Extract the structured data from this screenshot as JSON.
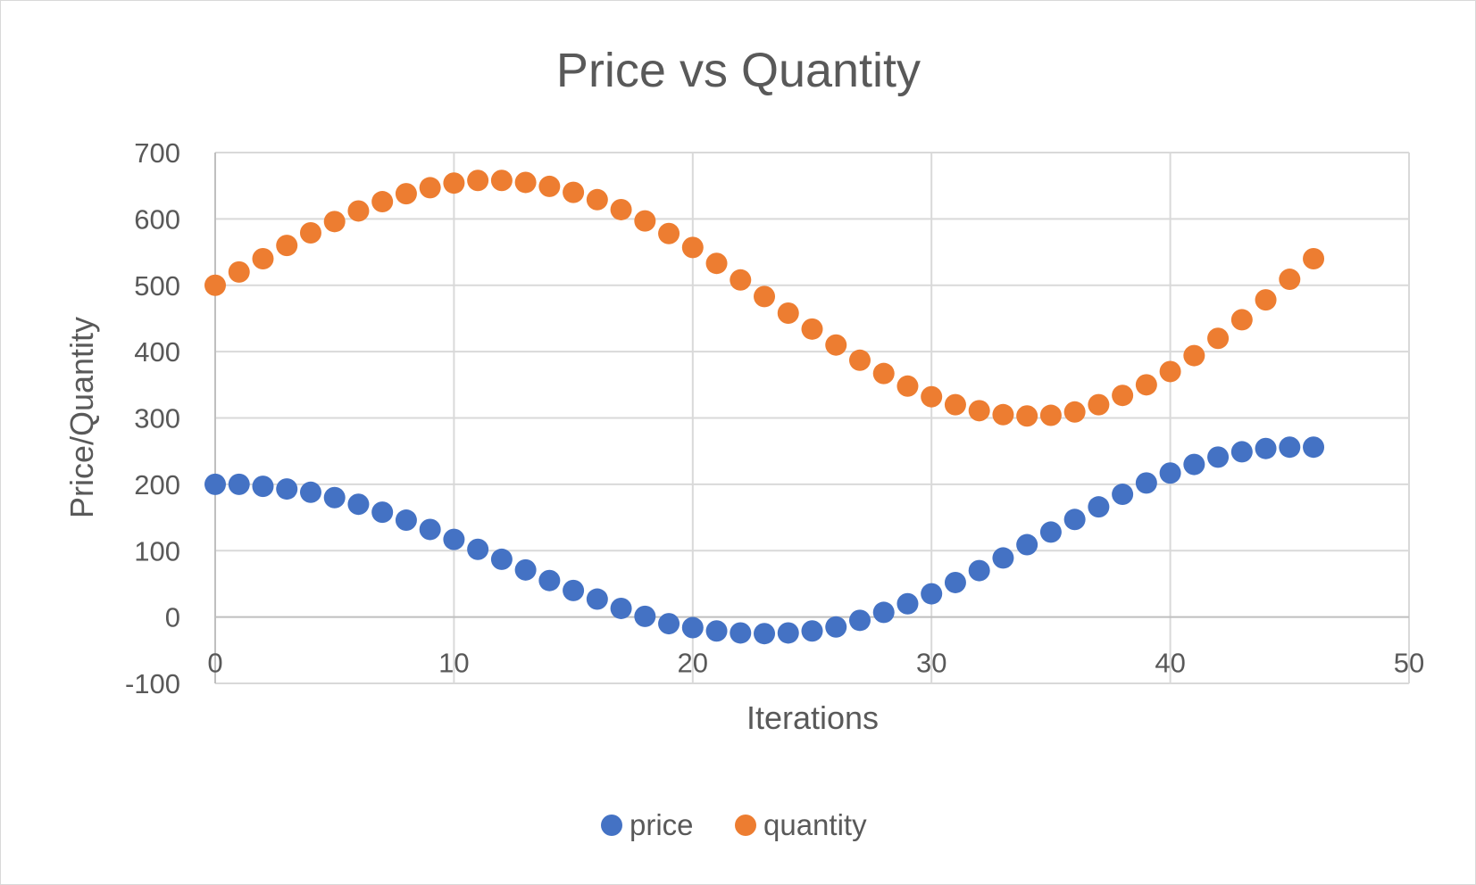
{
  "chart_data": {
    "type": "scatter",
    "title": "Price vs Quantity",
    "xlabel": "Iterations",
    "ylabel": "Price/Quantity",
    "xlim": [
      0,
      50
    ],
    "ylim": [
      -100,
      700
    ],
    "xticks": [
      0,
      10,
      20,
      30,
      40,
      50
    ],
    "yticks": [
      -100,
      0,
      100,
      200,
      300,
      400,
      500,
      600,
      700
    ],
    "grid": true,
    "legend_position": "bottom",
    "series": [
      {
        "name": "price",
        "color": "#4472C4",
        "x": [
          0,
          1,
          2,
          3,
          4,
          5,
          6,
          7,
          8,
          9,
          10,
          11,
          12,
          13,
          14,
          15,
          16,
          17,
          18,
          19,
          20,
          21,
          22,
          23,
          24,
          25,
          26,
          27,
          28,
          29,
          30,
          31,
          32,
          33,
          34,
          35,
          36,
          37,
          38,
          39,
          40,
          41,
          42,
          43,
          44,
          45,
          46
        ],
        "y": [
          200,
          200,
          197,
          193,
          188,
          180,
          170,
          158,
          146,
          132,
          117,
          102,
          87,
          71,
          55,
          40,
          27,
          13,
          1,
          -10,
          -16,
          -21,
          -24,
          -25,
          -24,
          -21,
          -15,
          -5,
          7,
          20,
          35,
          52,
          70,
          89,
          109,
          128,
          147,
          166,
          185,
          202,
          217,
          230,
          241,
          249,
          254,
          256,
          256
        ]
      },
      {
        "name": "quantity",
        "color": "#ED7D31",
        "x": [
          0,
          1,
          2,
          3,
          4,
          5,
          6,
          7,
          8,
          9,
          10,
          11,
          12,
          13,
          14,
          15,
          16,
          17,
          18,
          19,
          20,
          21,
          22,
          23,
          24,
          25,
          26,
          27,
          28,
          29,
          30,
          31,
          32,
          33,
          34,
          35,
          36,
          37,
          38,
          39,
          40,
          41,
          42,
          43,
          44,
          45,
          46
        ],
        "y": [
          500,
          520,
          540,
          560,
          579,
          596,
          612,
          626,
          638,
          647,
          654,
          658,
          658,
          655,
          649,
          640,
          629,
          614,
          597,
          578,
          557,
          533,
          508,
          483,
          458,
          434,
          410,
          387,
          367,
          348,
          332,
          320,
          311,
          305,
          303,
          304,
          309,
          320,
          334,
          350,
          370,
          394,
          420,
          448,
          478,
          509,
          540
        ]
      }
    ]
  }
}
